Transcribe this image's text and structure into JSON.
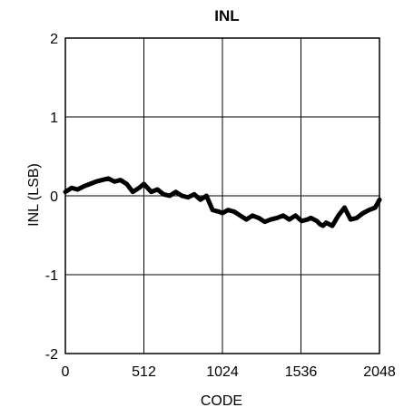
{
  "chart_data": {
    "type": "line",
    "title": "INL",
    "xlabel": "CODE",
    "ylabel": "INL (LSB)",
    "xlim": [
      0,
      2048
    ],
    "ylim": [
      -2,
      2
    ],
    "x_ticks": [
      0,
      512,
      1024,
      1536,
      2048
    ],
    "y_ticks": [
      2,
      1,
      0,
      -1,
      -2
    ],
    "x_tick_labels": [
      "0",
      "512",
      "1024",
      "1536",
      "2048"
    ],
    "y_tick_labels": [
      "2",
      "1",
      "0",
      "-1",
      "-2"
    ],
    "grid": true,
    "series": [
      {
        "color": "#000000",
        "x": [
          0,
          40,
          80,
          120,
          160,
          200,
          240,
          280,
          320,
          360,
          400,
          440,
          480,
          512,
          560,
          600,
          640,
          680,
          720,
          760,
          800,
          840,
          880,
          920,
          960,
          1000,
          1024,
          1060,
          1100,
          1140,
          1180,
          1220,
          1260,
          1300,
          1340,
          1380,
          1420,
          1460,
          1500,
          1540,
          1580,
          1600,
          1640,
          1660,
          1680,
          1700,
          1740,
          1780,
          1820,
          1860,
          1900,
          1940,
          1980,
          2020,
          2048
        ],
        "y": [
          0.05,
          0.1,
          0.08,
          0.12,
          0.15,
          0.18,
          0.2,
          0.22,
          0.18,
          0.2,
          0.15,
          0.05,
          0.1,
          0.15,
          0.05,
          0.08,
          0.02,
          0.0,
          0.05,
          0.0,
          -0.02,
          0.02,
          -0.05,
          0.0,
          -0.18,
          -0.2,
          -0.22,
          -0.18,
          -0.2,
          -0.25,
          -0.3,
          -0.25,
          -0.28,
          -0.33,
          -0.3,
          -0.28,
          -0.25,
          -0.3,
          -0.25,
          -0.32,
          -0.3,
          -0.28,
          -0.32,
          -0.36,
          -0.38,
          -0.34,
          -0.38,
          -0.25,
          -0.15,
          -0.3,
          -0.28,
          -0.22,
          -0.18,
          -0.15,
          -0.05
        ]
      }
    ]
  }
}
